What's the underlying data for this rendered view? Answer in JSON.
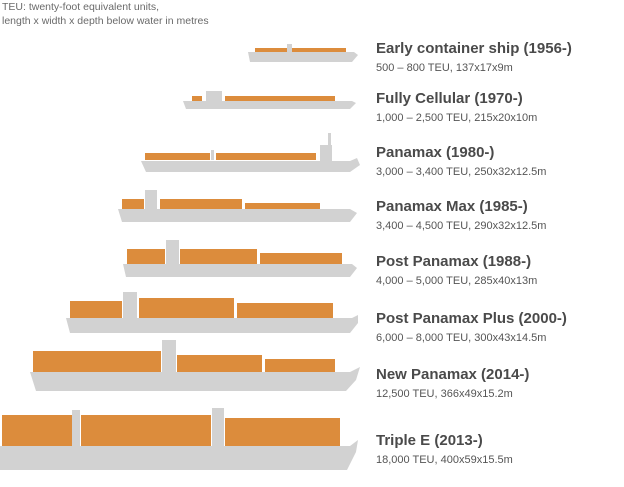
{
  "note": {
    "line1": "TEU: twenty-foot equivalent units,",
    "line2": "length x width x depth below water in metres"
  },
  "colors": {
    "hull": "#d2d2d2",
    "cargo": "#dc8c3c",
    "text": "#4a4a4a"
  },
  "ships": [
    {
      "name": "Early container ship (1956-)",
      "spec": "500 – 800 TEU, 137x17x9m"
    },
    {
      "name": "Fully Cellular (1970-)",
      "spec": "1,000 – 2,500 TEU, 215x20x10m"
    },
    {
      "name": "Panamax (1980-)",
      "spec": "3,000 – 3,400 TEU, 250x32x12.5m"
    },
    {
      "name": "Panamax Max (1985-)",
      "spec": "3,400 – 4,500 TEU, 290x32x12.5m"
    },
    {
      "name": "Post Panamax (1988-)",
      "spec": "4,000 – 5,000 TEU, 285x40x13m"
    },
    {
      "name": "Post Panamax Plus (2000-)",
      "spec": "6,000 – 8,000 TEU, 300x43x14.5m"
    },
    {
      "name": "New Panamax (2014-)",
      "spec": "12,500 TEU, 366x49x15.2m"
    },
    {
      "name": "Triple E (2013-)",
      "spec": "18,000 TEU, 400x59x15.5m"
    }
  ]
}
